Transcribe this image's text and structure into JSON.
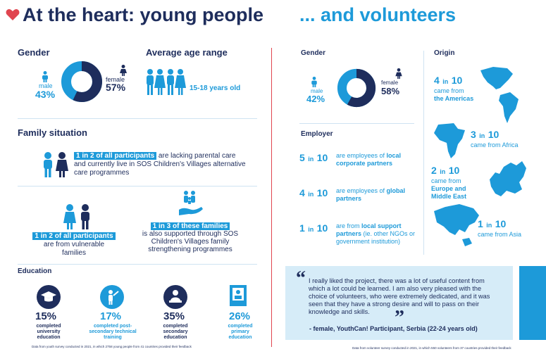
{
  "left": {
    "title": "At the heart: young people",
    "gender": {
      "heading": "Gender",
      "male_label": "male",
      "male_pct": "43%",
      "female_label": "female",
      "female_pct": "57%",
      "female_fraction": 0.57
    },
    "age": {
      "heading": "Average age range",
      "value": "15-18 years old"
    },
    "family": {
      "heading": "Family situation",
      "stat1_highlight": "1 in 2 of all participants",
      "stat1_rest": "are lacking parental care and currently live in SOS Children's Villages alternative care programmes",
      "stat2_highlight": "1 in 2 of all participants",
      "stat2_rest": "are from vulnerable families",
      "stat3_highlight": "1 in 3 of these families",
      "stat3_rest": "is also supported through SOS Children's Villages family strengthening programmes"
    },
    "education": {
      "heading": "Education",
      "items": [
        {
          "pct": "15%",
          "label": "completed university education",
          "icon": "graduation-cap-icon"
        },
        {
          "pct": "17%",
          "label": "completed post-secondary technical training",
          "icon": "wrench-person-icon"
        },
        {
          "pct": "35%",
          "label": "completed secondary education",
          "icon": "student-desk-icon"
        },
        {
          "pct": "26%",
          "label": "completed primary education",
          "icon": "book-icon"
        }
      ]
    },
    "footnote": "Data from youth survey conducted in 2021, in which 2758 young people from 41 countries provided their feedback"
  },
  "right": {
    "title": "... and volunteers",
    "gender": {
      "heading": "Gender",
      "male_label": "male",
      "male_pct": "42%",
      "female_label": "female",
      "female_pct": "58%",
      "female_fraction": 0.58
    },
    "employer": {
      "heading": "Employer",
      "items": [
        {
          "num": "5",
          "in": "in",
          "den": "10",
          "pre": "are employees of ",
          "bold": "local corporate partners",
          "post": ""
        },
        {
          "num": "4",
          "in": "in",
          "den": "10",
          "pre": "are employees of ",
          "bold": "global partners",
          "post": ""
        },
        {
          "num": "1",
          "in": "in",
          "den": "10",
          "pre": "are from ",
          "bold": "local support partners",
          "post": " (ie. other NGOs or government institution)"
        }
      ]
    },
    "origin": {
      "heading": "Origin",
      "items": [
        {
          "num": "4",
          "in": "in",
          "den": "10",
          "pre": "came from",
          "bold": "the Americas"
        },
        {
          "num": "3",
          "in": "in",
          "den": "10",
          "pre": "came from Africa",
          "bold": ""
        },
        {
          "num": "2",
          "in": "in",
          "den": "10",
          "pre": "came from",
          "bold": "Europe and Middle East"
        },
        {
          "num": "1",
          "in": "in",
          "den": "10",
          "pre": "came from Asia",
          "bold": ""
        }
      ]
    },
    "quote": {
      "text": "I really liked the project, there was a lot of useful content from which a lot could be learned. I am also very pleased with the choice of volunteers, who were extremely dedicated, and it was seen that they have a strong desire and will to pass on their knowledge and skills.",
      "attribution": "- female, YouthCan! Participant, Serbia (22-24 years old)"
    },
    "footnote": "Data from volunteer survey conducted in 2021, in which 550 volunteers from 37 countries provided their feedback"
  },
  "colors": {
    "navy": "#1e2d5c",
    "blue": "#1d9ad9",
    "red": "#e0454f",
    "light": "#d6ecf8"
  }
}
